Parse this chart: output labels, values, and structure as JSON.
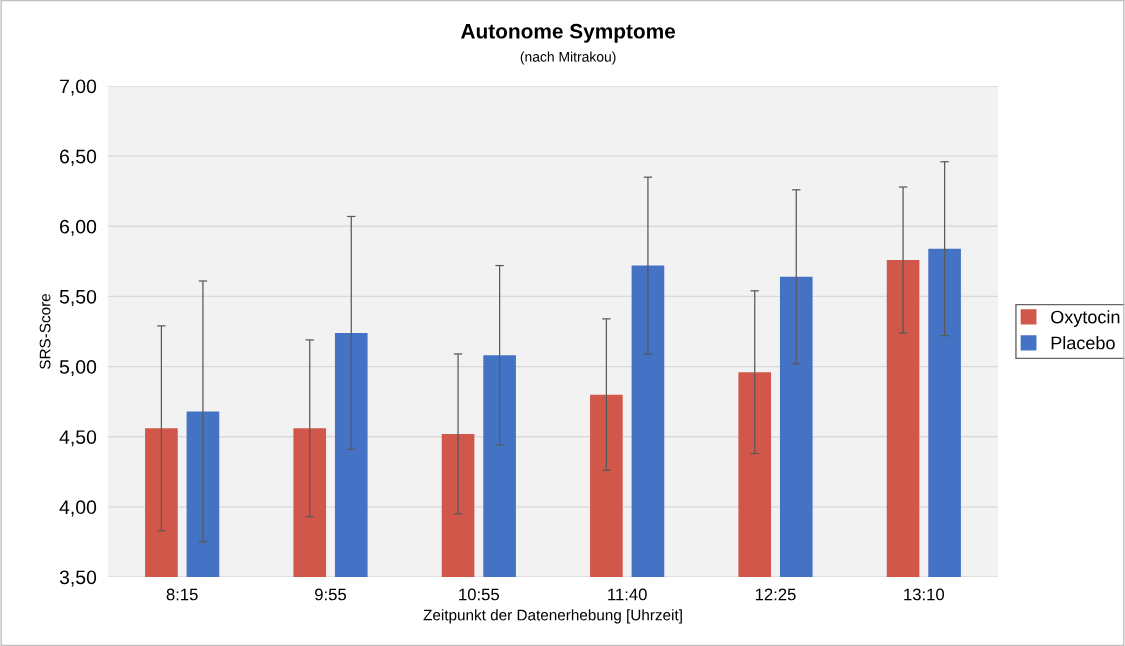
{
  "chart_data": {
    "type": "bar",
    "title": "Autonome Symptome",
    "subtitle": "(nach Mitrakou)",
    "xlabel": "Zeitpunkt der Datenerhebung [Uhrzeit]",
    "ylabel": "SRS-Score",
    "categories": [
      "8:15",
      "9:55",
      "10:55",
      "11:40",
      "12:25",
      "13:10"
    ],
    "series": [
      {
        "name": "Oxytocin",
        "color": "#d0574a",
        "values": [
          4.56,
          4.56,
          4.52,
          4.8,
          4.96,
          5.76
        ],
        "errors": [
          0.73,
          0.63,
          0.57,
          0.54,
          0.58,
          0.52
        ]
      },
      {
        "name": "Placebo",
        "color": "#4472c4",
        "values": [
          4.68,
          5.24,
          5.08,
          5.72,
          5.64,
          5.84
        ],
        "errors": [
          0.93,
          0.83,
          0.64,
          0.63,
          0.62,
          0.62
        ]
      }
    ],
    "ylim": [
      3.5,
      7.0
    ],
    "yticks": [
      {
        "value": 3.5,
        "label": "3,50"
      },
      {
        "value": 4.0,
        "label": "4,00"
      },
      {
        "value": 4.5,
        "label": "4,50"
      },
      {
        "value": 5.0,
        "label": "5,00"
      },
      {
        "value": 5.5,
        "label": "5,50"
      },
      {
        "value": 6.0,
        "label": "6,00"
      },
      {
        "value": 6.5,
        "label": "6,50"
      },
      {
        "value": 7.0,
        "label": "7,00"
      }
    ],
    "grid": "y",
    "legend": "right"
  }
}
